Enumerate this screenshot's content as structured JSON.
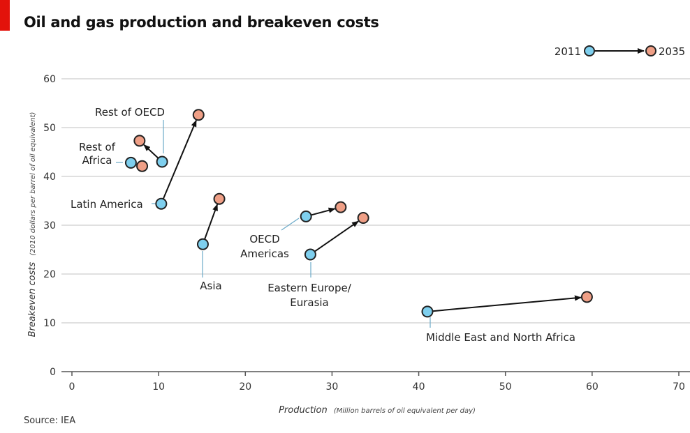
{
  "title": "Oil and gas production and breakeven costs",
  "source": "Source: IEA",
  "colors": {
    "start": "#7ecfee",
    "end": "#ef9f86",
    "brand": "#e3120b"
  },
  "chart_data": {
    "type": "scatter",
    "title": "Oil and gas production and breakeven costs",
    "xlabel_main": "Production",
    "xlabel_sub": "(Million barrels of oil equivalent per day)",
    "ylabel_main": "Breakeven costs",
    "ylabel_sub": "(2010 dollars per barrel of oil equivalent)",
    "xlim": [
      0,
      70
    ],
    "ylim": [
      0,
      60
    ],
    "xticks": [
      0,
      10,
      20,
      30,
      40,
      50,
      60,
      70
    ],
    "yticks": [
      0,
      10,
      20,
      30,
      40,
      50,
      60
    ],
    "grid": "horizontal",
    "legend": {
      "start": "2011",
      "end": "2035",
      "placement": "top-right"
    },
    "regions": [
      {
        "name": "Rest of OECD",
        "label_lines": [
          "Rest of OECD"
        ],
        "start": [
          10.4,
          43
        ],
        "end": [
          7.8,
          47.3
        ]
      },
      {
        "name": "Rest of Africa",
        "label_lines": [
          "Rest of",
          "Africa"
        ],
        "start": [
          6.8,
          42.8
        ],
        "end": [
          8.1,
          42.1
        ]
      },
      {
        "name": "Latin America",
        "label_lines": [
          "Latin America"
        ],
        "start": [
          10.3,
          34.4
        ],
        "end": [
          14.6,
          52.6
        ]
      },
      {
        "name": "Asia",
        "label_lines": [
          "Asia"
        ],
        "start": [
          15.1,
          26.1
        ],
        "end": [
          17,
          35.4
        ]
      },
      {
        "name": "OECD Americas",
        "label_lines": [
          "OECD",
          "Americas"
        ],
        "start": [
          27,
          31.8
        ],
        "end": [
          31,
          33.7
        ]
      },
      {
        "name": "Eastern Europe/Eurasia",
        "label_lines": [
          "Eastern Europe/",
          "Eurasia"
        ],
        "start": [
          27.5,
          24
        ],
        "end": [
          33.6,
          31.5
        ]
      },
      {
        "name": "Middle East and North Africa",
        "label_lines": [
          "Middle East and North Africa"
        ],
        "start": [
          41,
          12.3
        ],
        "end": [
          59.4,
          15.3
        ]
      }
    ]
  }
}
